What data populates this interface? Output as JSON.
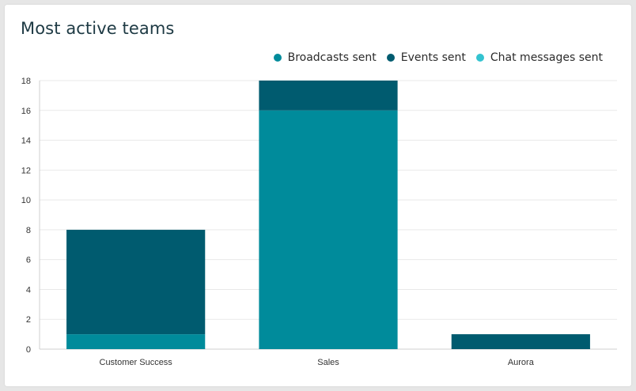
{
  "title": "Most active teams",
  "colors": {
    "broadcasts": "#008b9b",
    "events": "#005b6f",
    "chat": "#33c3d0",
    "grid": "#e9e9e9",
    "axis": "#cfcfcf"
  },
  "legend": [
    {
      "label": "Broadcasts sent",
      "color": "#008b9b"
    },
    {
      "label": "Events sent",
      "color": "#005b6f"
    },
    {
      "label": "Chat messages sent",
      "color": "#33c3d0"
    }
  ],
  "chart_data": {
    "type": "bar",
    "stacked": true,
    "categories": [
      "Customer Success",
      "Sales",
      "Aurora"
    ],
    "series": [
      {
        "name": "Broadcasts sent",
        "values": [
          1,
          16,
          0
        ]
      },
      {
        "name": "Events sent",
        "values": [
          7,
          2,
          1
        ]
      },
      {
        "name": "Chat messages sent",
        "values": [
          0,
          0,
          0
        ]
      }
    ],
    "ylim": [
      0,
      18
    ],
    "yticks": [
      0,
      2,
      4,
      6,
      8,
      10,
      12,
      14,
      16,
      18
    ],
    "grid": true,
    "legend_position": "top-right",
    "xlabel": "",
    "ylabel": ""
  }
}
